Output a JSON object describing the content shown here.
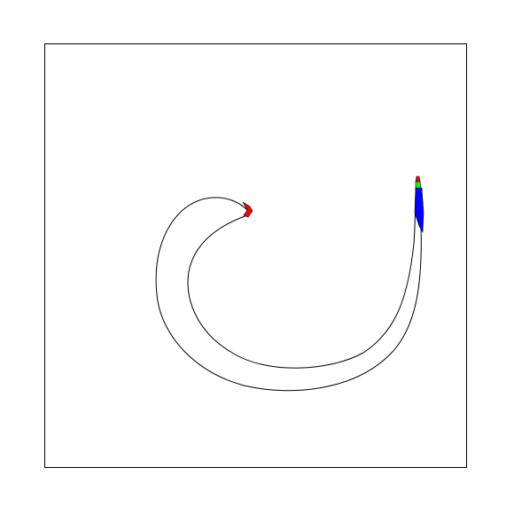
{
  "figure": {
    "background": "#ffffff",
    "frame_color": "#000000",
    "stroke_color": "#000000"
  },
  "shape": {
    "kind": "spiral-band",
    "fill": "#ffffff",
    "tip_patches": [
      {
        "name": "red-patch-left-tip",
        "color": "#ff0000"
      },
      {
        "name": "blue-patch-right-tip",
        "color": "#0000ff"
      },
      {
        "name": "green-patch-right-tip",
        "color": "#00ff00"
      },
      {
        "name": "red-patch-right-tip",
        "color": "#ff0000"
      }
    ]
  }
}
